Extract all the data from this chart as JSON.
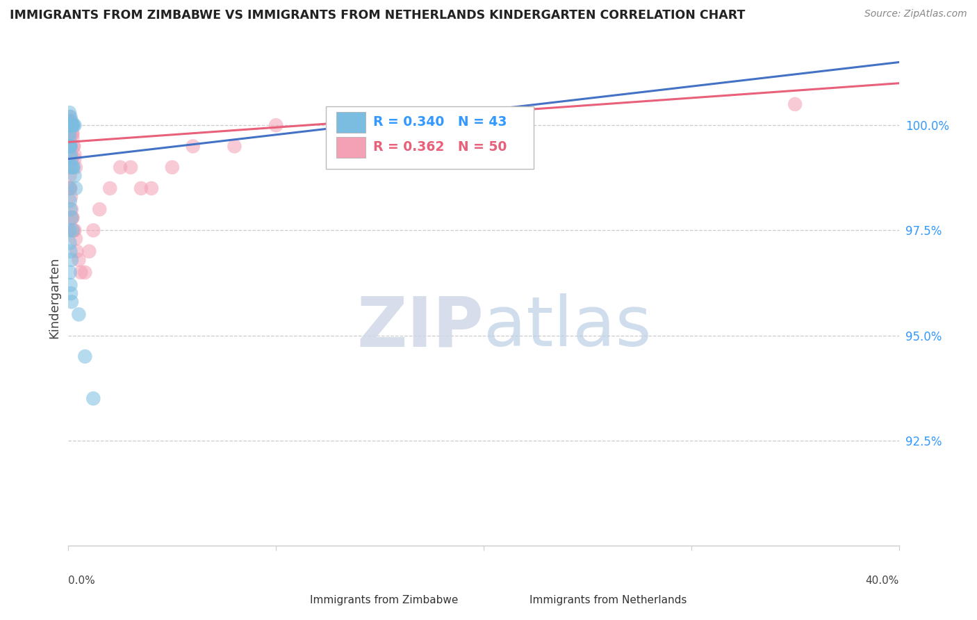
{
  "title": "IMMIGRANTS FROM ZIMBABWE VS IMMIGRANTS FROM NETHERLANDS KINDERGARTEN CORRELATION CHART",
  "source": "Source: ZipAtlas.com",
  "ylabel": "Kindergarten",
  "legend_zimbabwe": "Immigrants from Zimbabwe",
  "legend_netherlands": "Immigrants from Netherlands",
  "R_zimbabwe": 0.34,
  "N_zimbabwe": 43,
  "R_netherlands": 0.362,
  "N_netherlands": 50,
  "color_zimbabwe": "#7bbde0",
  "color_netherlands": "#f4a0b5",
  "trend_color_zimbabwe": "#4472c4",
  "trend_color_netherlands": "#e8607a",
  "ymin": 90.0,
  "ymax": 101.8,
  "xmin": 0.0,
  "xmax": 40.0,
  "yticks": [
    92.5,
    95.0,
    97.5,
    100.0
  ],
  "ytick_labels": [
    "92.5%",
    "95.0%",
    "97.5%",
    "100.0%"
  ],
  "zimbabwe_x": [
    0.05,
    0.1,
    0.15,
    0.05,
    0.08,
    0.08,
    0.12,
    0.12,
    0.15,
    0.15,
    0.18,
    0.2,
    0.25,
    0.3,
    0.05,
    0.05,
    0.07,
    0.08,
    0.1,
    0.1,
    0.12,
    0.15,
    0.18,
    0.2,
    0.25,
    0.3,
    0.35,
    0.05,
    0.08,
    0.1,
    0.15,
    0.2,
    0.05,
    0.07,
    0.1,
    0.15,
    0.08,
    0.1,
    0.12,
    0.15,
    0.5,
    0.8,
    1.2
  ],
  "zimbabwe_y": [
    100.3,
    100.2,
    100.1,
    100.0,
    100.0,
    100.0,
    100.0,
    100.0,
    100.0,
    100.0,
    100.0,
    100.0,
    100.0,
    100.0,
    99.8,
    99.7,
    99.5,
    99.5,
    99.5,
    99.5,
    99.3,
    99.2,
    99.0,
    99.0,
    99.0,
    98.8,
    98.5,
    98.5,
    98.2,
    98.0,
    97.8,
    97.5,
    97.5,
    97.2,
    97.0,
    96.8,
    96.5,
    96.2,
    96.0,
    95.8,
    95.5,
    94.5,
    93.5
  ],
  "netherlands_x": [
    0.05,
    0.05,
    0.08,
    0.08,
    0.1,
    0.1,
    0.12,
    0.12,
    0.15,
    0.15,
    0.15,
    0.18,
    0.18,
    0.2,
    0.2,
    0.25,
    0.25,
    0.3,
    0.3,
    0.35,
    0.05,
    0.07,
    0.08,
    0.1,
    0.12,
    0.15,
    0.18,
    0.2,
    0.25,
    0.3,
    0.35,
    0.4,
    0.5,
    0.6,
    0.8,
    1.0,
    1.2,
    1.5,
    2.0,
    2.5,
    3.0,
    3.5,
    4.0,
    5.0,
    6.0,
    8.0,
    10.0,
    15.0,
    20.0,
    35.0
  ],
  "netherlands_y": [
    100.2,
    100.1,
    100.1,
    100.0,
    100.0,
    100.0,
    100.0,
    100.0,
    100.0,
    100.0,
    100.0,
    100.0,
    99.8,
    99.8,
    99.7,
    99.5,
    99.5,
    99.3,
    99.2,
    99.0,
    99.0,
    98.8,
    98.5,
    98.5,
    98.3,
    98.0,
    97.8,
    97.8,
    97.5,
    97.5,
    97.3,
    97.0,
    96.8,
    96.5,
    96.5,
    97.0,
    97.5,
    98.0,
    98.5,
    99.0,
    99.0,
    98.5,
    98.5,
    99.0,
    99.5,
    99.5,
    100.0,
    99.5,
    100.0,
    100.5
  ],
  "trend_zim_x0": 0.0,
  "trend_zim_y0": 99.2,
  "trend_zim_x1": 40.0,
  "trend_zim_y1": 101.5,
  "trend_neth_x0": 0.0,
  "trend_neth_y0": 99.6,
  "trend_neth_x1": 40.0,
  "trend_neth_y1": 101.0
}
